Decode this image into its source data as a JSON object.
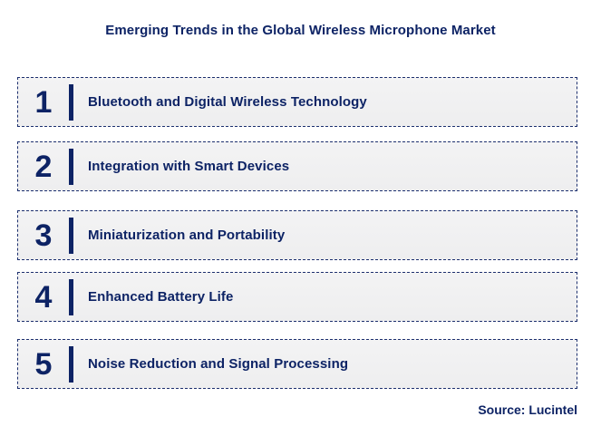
{
  "title": "Emerging Trends in the Global Wireless Microphone Market",
  "source": "Source: Lucintel",
  "colors": {
    "navy": "#0d2365",
    "border": "#1c2f6e",
    "row_background": "#f1f1f2",
    "page_background": "#ffffff"
  },
  "trends": [
    {
      "number": "1",
      "label": "Bluetooth and Digital Wireless Technology"
    },
    {
      "number": "2",
      "label": "Integration with Smart Devices"
    },
    {
      "number": "3",
      "label": "Miniaturization and Portability"
    },
    {
      "number": "4",
      "label": "Enhanced Battery Life"
    },
    {
      "number": "5",
      "label": "Noise Reduction and Signal Processing"
    }
  ]
}
